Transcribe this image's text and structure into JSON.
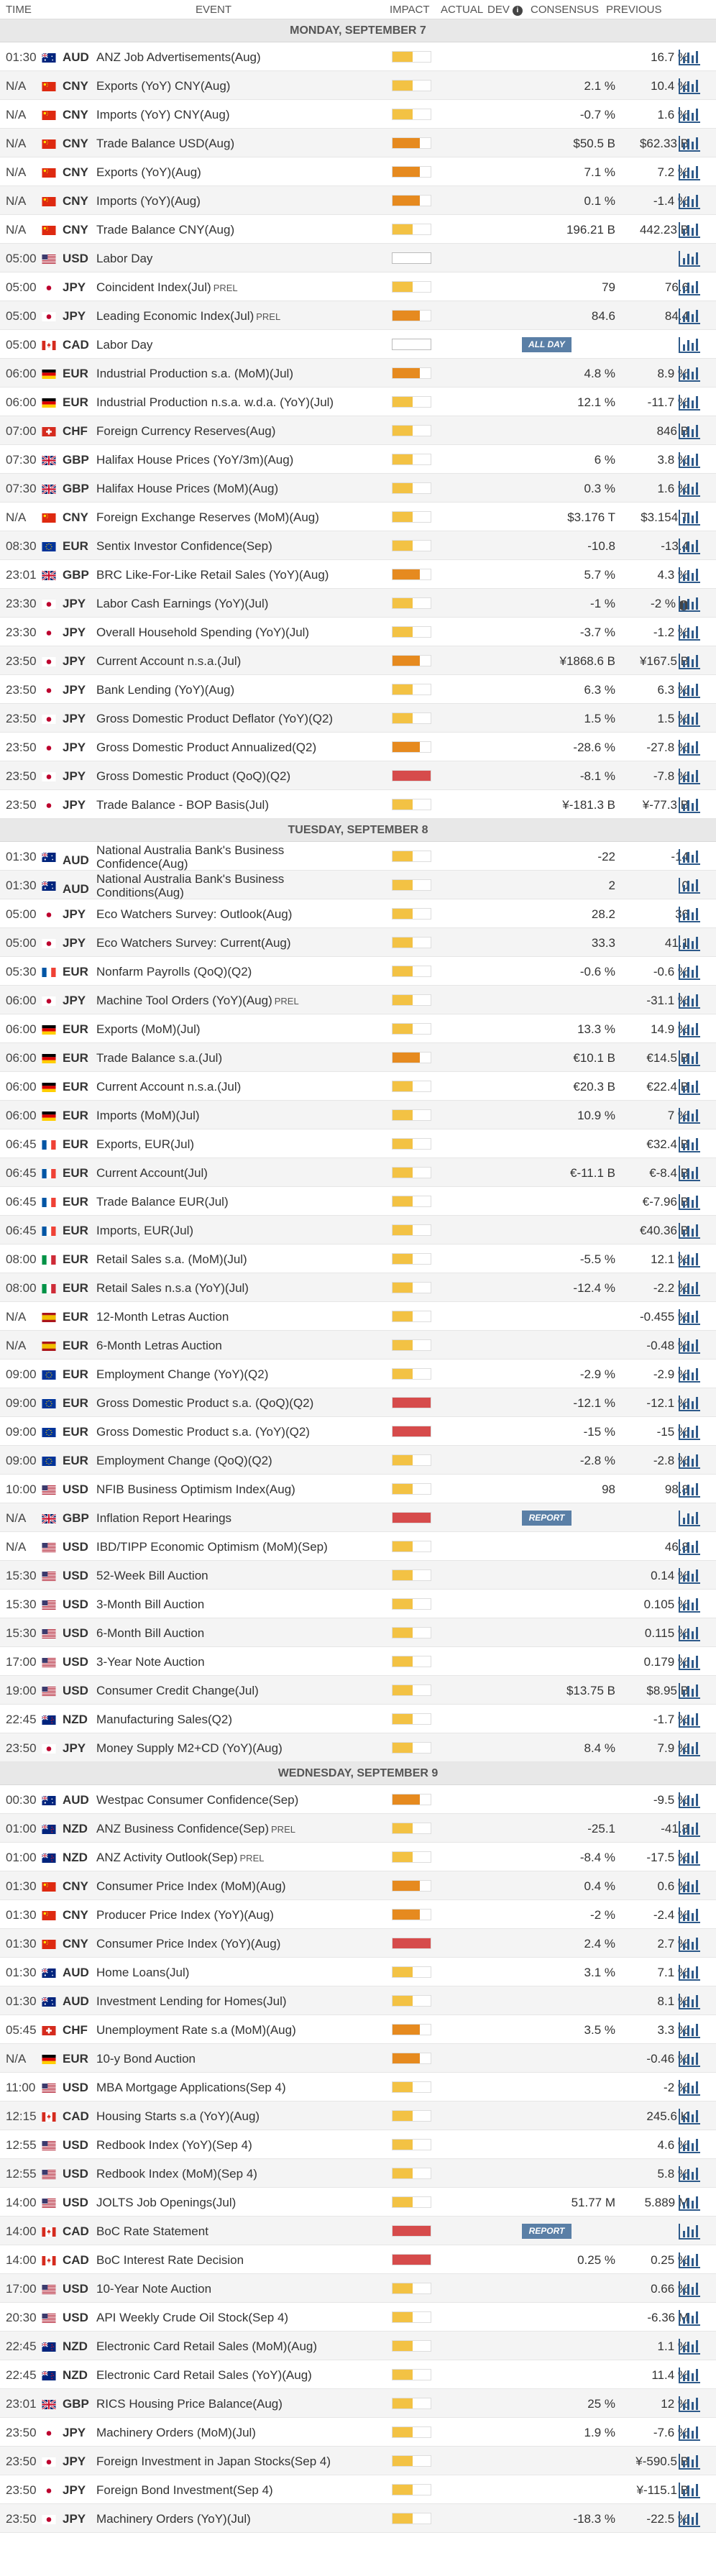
{
  "header": {
    "time": "TIME",
    "event": "EVENT",
    "impact": "IMPACT",
    "actual": "ACTUAL",
    "dev": "DEV",
    "consensus": "CONSENSUS",
    "previous": "PREVIOUS"
  },
  "colors": {
    "low": "#f3c244",
    "medium": "#e68a1f",
    "high": "#d64b4b"
  },
  "rows": [
    {
      "type": "day",
      "label": "MONDAY, SEPTEMBER 7"
    },
    {
      "time": "01:30",
      "flag": "au",
      "cur": "AUD",
      "event": "ANZ Job Advertisements(Aug)",
      "imp": "low",
      "cons": "",
      "prev": "16.7 %"
    },
    {
      "time": "N/A",
      "flag": "cn",
      "cur": "CNY",
      "event": "Exports (YoY) CNY(Aug)",
      "imp": "low",
      "cons": "2.1 %",
      "prev": "10.4 %"
    },
    {
      "time": "N/A",
      "flag": "cn",
      "cur": "CNY",
      "event": "Imports (YoY) CNY(Aug)",
      "imp": "low",
      "cons": "-0.7 %",
      "prev": "1.6 %"
    },
    {
      "time": "N/A",
      "flag": "cn",
      "cur": "CNY",
      "event": "Trade Balance USD(Aug)",
      "imp": "medium",
      "cons": "$50.5 B",
      "prev": "$62.33 B"
    },
    {
      "time": "N/A",
      "flag": "cn",
      "cur": "CNY",
      "event": "Exports (YoY)(Aug)",
      "imp": "medium",
      "cons": "7.1 %",
      "prev": "7.2 %"
    },
    {
      "time": "N/A",
      "flag": "cn",
      "cur": "CNY",
      "event": "Imports (YoY)(Aug)",
      "imp": "medium",
      "cons": "0.1 %",
      "prev": "-1.4 %"
    },
    {
      "time": "N/A",
      "flag": "cn",
      "cur": "CNY",
      "event": "Trade Balance CNY(Aug)",
      "imp": "low",
      "cons": "196.21 B",
      "prev": "442.23 B"
    },
    {
      "time": "05:00",
      "flag": "us",
      "cur": "USD",
      "event": "Labor Day",
      "imp": "none",
      "cons": "",
      "prev": ""
    },
    {
      "time": "05:00",
      "flag": "jp",
      "cur": "JPY",
      "event": "Coincident Index(Jul)",
      "prel": "PREL",
      "imp": "low",
      "cons": "79",
      "prev": "76.6"
    },
    {
      "time": "05:00",
      "flag": "jp",
      "cur": "JPY",
      "event": "Leading Economic Index(Jul)",
      "prel": "PREL",
      "imp": "medium",
      "cons": "84.6",
      "prev": "84.4"
    },
    {
      "time": "05:00",
      "flag": "ca",
      "cur": "CAD",
      "event": "Labor Day",
      "imp": "none",
      "badge": "ALL DAY",
      "cons": "",
      "prev": ""
    },
    {
      "time": "06:00",
      "flag": "de",
      "cur": "EUR",
      "event": "Industrial Production s.a. (MoM)(Jul)",
      "imp": "medium",
      "cons": "4.8 %",
      "prev": "8.9 %"
    },
    {
      "time": "06:00",
      "flag": "de",
      "cur": "EUR",
      "event": "Industrial Production n.s.a. w.d.a. (YoY)(Jul)",
      "imp": "low",
      "cons": "12.1 %",
      "prev": "-11.7 %"
    },
    {
      "time": "07:00",
      "flag": "ch",
      "cur": "CHF",
      "event": "Foreign Currency Reserves(Aug)",
      "imp": "low",
      "cons": "",
      "prev": "846 B"
    },
    {
      "time": "07:30",
      "flag": "gb",
      "cur": "GBP",
      "event": "Halifax House Prices (YoY/3m)(Aug)",
      "imp": "low",
      "cons": "6 %",
      "prev": "3.8 %"
    },
    {
      "time": "07:30",
      "flag": "gb",
      "cur": "GBP",
      "event": "Halifax House Prices (MoM)(Aug)",
      "imp": "low",
      "cons": "0.3 %",
      "prev": "1.6 %"
    },
    {
      "time": "N/A",
      "flag": "cn",
      "cur": "CNY",
      "event": "Foreign Exchange Reserves (MoM)(Aug)",
      "imp": "low",
      "cons": "$3.176 T",
      "prev": "$3.154 T"
    },
    {
      "time": "08:30",
      "flag": "eu",
      "cur": "EUR",
      "event": "Sentix Investor Confidence(Sep)",
      "imp": "low",
      "cons": "-10.8",
      "prev": "-13.4"
    },
    {
      "time": "23:01",
      "flag": "gb",
      "cur": "GBP",
      "event": "BRC Like-For-Like Retail Sales (YoY)(Aug)",
      "imp": "medium",
      "cons": "5.7 %",
      "prev": "4.3 %"
    },
    {
      "time": "23:30",
      "flag": "jp",
      "cur": "JPY",
      "event": "Labor Cash Earnings (YoY)(Jul)",
      "imp": "low",
      "cons": "-1 %",
      "prev": "-2 %",
      "info": "i"
    },
    {
      "time": "23:30",
      "flag": "jp",
      "cur": "JPY",
      "event": "Overall Household Spending (YoY)(Jul)",
      "imp": "low",
      "cons": "-3.7 %",
      "prev": "-1.2 %"
    },
    {
      "time": "23:50",
      "flag": "jp",
      "cur": "JPY",
      "event": "Current Account n.s.a.(Jul)",
      "imp": "medium",
      "cons": "¥1868.6 B",
      "prev": "¥167.5 B"
    },
    {
      "time": "23:50",
      "flag": "jp",
      "cur": "JPY",
      "event": "Bank Lending (YoY)(Aug)",
      "imp": "low",
      "cons": "6.3 %",
      "prev": "6.3 %"
    },
    {
      "time": "23:50",
      "flag": "jp",
      "cur": "JPY",
      "event": "Gross Domestic Product Deflator (YoY)(Q2)",
      "imp": "low",
      "cons": "1.5 %",
      "prev": "1.5 %"
    },
    {
      "time": "23:50",
      "flag": "jp",
      "cur": "JPY",
      "event": "Gross Domestic Product Annualized(Q2)",
      "imp": "medium",
      "cons": "-28.6 %",
      "prev": "-27.8 %"
    },
    {
      "time": "23:50",
      "flag": "jp",
      "cur": "JPY",
      "event": "Gross Domestic Product (QoQ)(Q2)",
      "imp": "high",
      "cons": "-8.1 %",
      "prev": "-7.8 %"
    },
    {
      "time": "23:50",
      "flag": "jp",
      "cur": "JPY",
      "event": "Trade Balance - BOP Basis(Jul)",
      "imp": "low",
      "cons": "¥-181.3 B",
      "prev": "¥-77.3 B"
    },
    {
      "type": "day",
      "label": "TUESDAY, SEPTEMBER 8"
    },
    {
      "time": "01:30",
      "flag": "au",
      "cur": "AUD",
      "event": "National Australia Bank's Business Confidence(Aug)",
      "two": true,
      "imp": "low",
      "cons": "-22",
      "prev": "-14"
    },
    {
      "time": "01:30",
      "flag": "au",
      "cur": "AUD",
      "event": "National Australia Bank's Business Conditions(Aug)",
      "two": true,
      "imp": "low",
      "cons": "2",
      "prev": "0"
    },
    {
      "time": "05:00",
      "flag": "jp",
      "cur": "JPY",
      "event": "Eco Watchers Survey: Outlook(Aug)",
      "imp": "low",
      "cons": "28.2",
      "prev": "36"
    },
    {
      "time": "05:00",
      "flag": "jp",
      "cur": "JPY",
      "event": "Eco Watchers Survey: Current(Aug)",
      "imp": "low",
      "cons": "33.3",
      "prev": "41.1"
    },
    {
      "time": "05:30",
      "flag": "fr",
      "cur": "EUR",
      "event": "Nonfarm Payrolls (QoQ)(Q2)",
      "imp": "low",
      "cons": "-0.6 %",
      "prev": "-0.6 %"
    },
    {
      "time": "06:00",
      "flag": "jp",
      "cur": "JPY",
      "event": "Machine Tool Orders (YoY)(Aug)",
      "prel": "PREL",
      "imp": "low",
      "cons": "",
      "prev": "-31.1 %"
    },
    {
      "time": "06:00",
      "flag": "de",
      "cur": "EUR",
      "event": "Exports (MoM)(Jul)",
      "imp": "low",
      "cons": "13.3 %",
      "prev": "14.9 %"
    },
    {
      "time": "06:00",
      "flag": "de",
      "cur": "EUR",
      "event": "Trade Balance s.a.(Jul)",
      "imp": "medium",
      "cons": "€10.1 B",
      "prev": "€14.5 B"
    },
    {
      "time": "06:00",
      "flag": "de",
      "cur": "EUR",
      "event": "Current Account n.s.a.(Jul)",
      "imp": "low",
      "cons": "€20.3 B",
      "prev": "€22.4 B"
    },
    {
      "time": "06:00",
      "flag": "de",
      "cur": "EUR",
      "event": "Imports (MoM)(Jul)",
      "imp": "low",
      "cons": "10.9 %",
      "prev": "7 %"
    },
    {
      "time": "06:45",
      "flag": "fr",
      "cur": "EUR",
      "event": "Exports, EUR(Jul)",
      "imp": "low",
      "cons": "",
      "prev": "€32.4 B"
    },
    {
      "time": "06:45",
      "flag": "fr",
      "cur": "EUR",
      "event": "Current Account(Jul)",
      "imp": "low",
      "cons": "€-11.1 B",
      "prev": "€-8.4 B"
    },
    {
      "time": "06:45",
      "flag": "fr",
      "cur": "EUR",
      "event": "Trade Balance EUR(Jul)",
      "imp": "low",
      "cons": "",
      "prev": "€-7.96 B"
    },
    {
      "time": "06:45",
      "flag": "fr",
      "cur": "EUR",
      "event": "Imports, EUR(Jul)",
      "imp": "low",
      "cons": "",
      "prev": "€40.36 B"
    },
    {
      "time": "08:00",
      "flag": "it",
      "cur": "EUR",
      "event": "Retail Sales s.a. (MoM)(Jul)",
      "imp": "low",
      "cons": "-5.5 %",
      "prev": "12.1 %"
    },
    {
      "time": "08:00",
      "flag": "it",
      "cur": "EUR",
      "event": "Retail Sales n.s.a (YoY)(Jul)",
      "imp": "low",
      "cons": "-12.4 %",
      "prev": "-2.2 %"
    },
    {
      "time": "N/A",
      "flag": "es",
      "cur": "EUR",
      "event": "12-Month Letras Auction",
      "imp": "low",
      "cons": "",
      "prev": "-0.455 %"
    },
    {
      "time": "N/A",
      "flag": "es",
      "cur": "EUR",
      "event": "6-Month Letras Auction",
      "imp": "low",
      "cons": "",
      "prev": "-0.48 %"
    },
    {
      "time": "09:00",
      "flag": "eu",
      "cur": "EUR",
      "event": "Employment Change (YoY)(Q2)",
      "imp": "low",
      "cons": "-2.9 %",
      "prev": "-2.9 %"
    },
    {
      "time": "09:00",
      "flag": "eu",
      "cur": "EUR",
      "event": "Gross Domestic Product s.a. (QoQ)(Q2)",
      "imp": "high",
      "cons": "-12.1 %",
      "prev": "-12.1 %"
    },
    {
      "time": "09:00",
      "flag": "eu",
      "cur": "EUR",
      "event": "Gross Domestic Product s.a. (YoY)(Q2)",
      "imp": "high",
      "cons": "-15 %",
      "prev": "-15 %"
    },
    {
      "time": "09:00",
      "flag": "eu",
      "cur": "EUR",
      "event": "Employment Change (QoQ)(Q2)",
      "imp": "low",
      "cons": "-2.8 %",
      "prev": "-2.8 %"
    },
    {
      "time": "10:00",
      "flag": "us",
      "cur": "USD",
      "event": "NFIB Business Optimism Index(Aug)",
      "imp": "low",
      "cons": "98",
      "prev": "98.8"
    },
    {
      "time": "N/A",
      "flag": "gb",
      "cur": "GBP",
      "event": "Inflation Report Hearings",
      "imp": "high",
      "badge": "REPORT",
      "cons": "",
      "prev": ""
    },
    {
      "time": "N/A",
      "flag": "us",
      "cur": "USD",
      "event": "IBD/TIPP Economic Optimism (MoM)(Sep)",
      "imp": "low",
      "cons": "",
      "prev": "46.8"
    },
    {
      "time": "15:30",
      "flag": "us",
      "cur": "USD",
      "event": "52-Week Bill Auction",
      "imp": "low",
      "cons": "",
      "prev": "0.14 %"
    },
    {
      "time": "15:30",
      "flag": "us",
      "cur": "USD",
      "event": "3-Month Bill Auction",
      "imp": "low",
      "cons": "",
      "prev": "0.105 %"
    },
    {
      "time": "15:30",
      "flag": "us",
      "cur": "USD",
      "event": "6-Month Bill Auction",
      "imp": "low",
      "cons": "",
      "prev": "0.115 %"
    },
    {
      "time": "17:00",
      "flag": "us",
      "cur": "USD",
      "event": "3-Year Note Auction",
      "imp": "low",
      "cons": "",
      "prev": "0.179 %"
    },
    {
      "time": "19:00",
      "flag": "us",
      "cur": "USD",
      "event": "Consumer Credit Change(Jul)",
      "imp": "low",
      "cons": "$13.75 B",
      "prev": "$8.95 B"
    },
    {
      "time": "22:45",
      "flag": "nz",
      "cur": "NZD",
      "event": "Manufacturing Sales(Q2)",
      "imp": "low",
      "cons": "",
      "prev": "-1.7 %"
    },
    {
      "time": "23:50",
      "flag": "jp",
      "cur": "JPY",
      "event": "Money Supply M2+CD (YoY)(Aug)",
      "imp": "low",
      "cons": "8.4 %",
      "prev": "7.9 %"
    },
    {
      "type": "day",
      "label": "WEDNESDAY, SEPTEMBER 9"
    },
    {
      "time": "00:30",
      "flag": "au",
      "cur": "AUD",
      "event": "Westpac Consumer Confidence(Sep)",
      "imp": "medium",
      "cons": "",
      "prev": "-9.5 %"
    },
    {
      "time": "01:00",
      "flag": "nz",
      "cur": "NZD",
      "event": "ANZ Business Confidence(Sep)",
      "prel": "PREL",
      "imp": "low",
      "cons": "-25.1",
      "prev": "-41.8"
    },
    {
      "time": "01:00",
      "flag": "nz",
      "cur": "NZD",
      "event": "ANZ Activity Outlook(Sep)",
      "prel": "PREL",
      "imp": "low",
      "cons": "-8.4 %",
      "prev": "-17.5 %"
    },
    {
      "time": "01:30",
      "flag": "cn",
      "cur": "CNY",
      "event": "Consumer Price Index (MoM)(Aug)",
      "imp": "medium",
      "cons": "0.4 %",
      "prev": "0.6 %"
    },
    {
      "time": "01:30",
      "flag": "cn",
      "cur": "CNY",
      "event": "Producer Price Index (YoY)(Aug)",
      "imp": "medium",
      "cons": "-2 %",
      "prev": "-2.4 %"
    },
    {
      "time": "01:30",
      "flag": "cn",
      "cur": "CNY",
      "event": "Consumer Price Index (YoY)(Aug)",
      "imp": "high",
      "cons": "2.4 %",
      "prev": "2.7 %"
    },
    {
      "time": "01:30",
      "flag": "au",
      "cur": "AUD",
      "event": "Home Loans(Jul)",
      "imp": "low",
      "cons": "3.1 %",
      "prev": "7.1 %"
    },
    {
      "time": "01:30",
      "flag": "au",
      "cur": "AUD",
      "event": "Investment Lending for Homes(Jul)",
      "imp": "low",
      "cons": "",
      "prev": "8.1 %"
    },
    {
      "time": "05:45",
      "flag": "ch",
      "cur": "CHF",
      "event": "Unemployment Rate s.a (MoM)(Aug)",
      "imp": "medium",
      "cons": "3.5 %",
      "prev": "3.3 %"
    },
    {
      "time": "N/A",
      "flag": "de",
      "cur": "EUR",
      "event": "10-y Bond Auction",
      "imp": "medium",
      "cons": "",
      "prev": "-0.46 %"
    },
    {
      "time": "11:00",
      "flag": "us",
      "cur": "USD",
      "event": "MBA Mortgage Applications(Sep 4)",
      "imp": "low",
      "cons": "",
      "prev": "-2 %"
    },
    {
      "time": "12:15",
      "flag": "ca",
      "cur": "CAD",
      "event": "Housing Starts s.a (YoY)(Aug)",
      "imp": "low",
      "cons": "",
      "prev": "245.6 K"
    },
    {
      "time": "12:55",
      "flag": "us",
      "cur": "USD",
      "event": "Redbook Index (YoY)(Sep 4)",
      "imp": "low",
      "cons": "",
      "prev": "4.6 %"
    },
    {
      "time": "12:55",
      "flag": "us",
      "cur": "USD",
      "event": "Redbook Index (MoM)(Sep 4)",
      "imp": "low",
      "cons": "",
      "prev": "5.8 %"
    },
    {
      "time": "14:00",
      "flag": "us",
      "cur": "USD",
      "event": "JOLTS Job Openings(Jul)",
      "imp": "low",
      "cons": "51.77 M",
      "prev": "5.889 M"
    },
    {
      "time": "14:00",
      "flag": "ca",
      "cur": "CAD",
      "event": "BoC Rate Statement",
      "imp": "high",
      "badge": "REPORT",
      "cons": "",
      "prev": ""
    },
    {
      "time": "14:00",
      "flag": "ca",
      "cur": "CAD",
      "event": "BoC Interest Rate Decision",
      "imp": "high",
      "cons": "0.25 %",
      "prev": "0.25 %"
    },
    {
      "time": "17:00",
      "flag": "us",
      "cur": "USD",
      "event": "10-Year Note Auction",
      "imp": "low",
      "cons": "",
      "prev": "0.66 %"
    },
    {
      "time": "20:30",
      "flag": "us",
      "cur": "USD",
      "event": "API Weekly Crude Oil Stock(Sep 4)",
      "imp": "low",
      "cons": "",
      "prev": "-6.36 M"
    },
    {
      "time": "22:45",
      "flag": "nz",
      "cur": "NZD",
      "event": "Electronic Card Retail Sales (MoM)(Aug)",
      "imp": "low",
      "cons": "",
      "prev": "1.1 %"
    },
    {
      "time": "22:45",
      "flag": "nz",
      "cur": "NZD",
      "event": "Electronic Card Retail Sales (YoY)(Aug)",
      "imp": "low",
      "cons": "",
      "prev": "11.4 %"
    },
    {
      "time": "23:01",
      "flag": "gb",
      "cur": "GBP",
      "event": "RICS Housing Price Balance(Aug)",
      "imp": "low",
      "cons": "25 %",
      "prev": "12 %"
    },
    {
      "time": "23:50",
      "flag": "jp",
      "cur": "JPY",
      "event": "Machinery Orders (MoM)(Jul)",
      "imp": "low",
      "cons": "1.9 %",
      "prev": "-7.6 %"
    },
    {
      "time": "23:50",
      "flag": "jp",
      "cur": "JPY",
      "event": "Foreign Investment in Japan Stocks(Sep 4)",
      "imp": "low",
      "cons": "",
      "prev": "¥-590.5 B"
    },
    {
      "time": "23:50",
      "flag": "jp",
      "cur": "JPY",
      "event": "Foreign Bond Investment(Sep 4)",
      "imp": "low",
      "cons": "",
      "prev": "¥-115.1 B"
    },
    {
      "time": "23:50",
      "flag": "jp",
      "cur": "JPY",
      "event": "Machinery Orders (YoY)(Jul)",
      "imp": "low",
      "cons": "-18.3 %",
      "prev": "-22.5 %"
    }
  ]
}
